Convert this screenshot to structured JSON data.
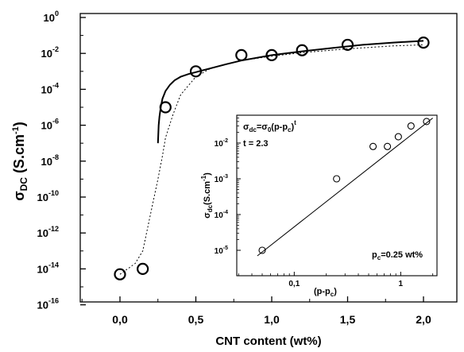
{
  "chart_data": [
    {
      "type": "scatter",
      "xlabel": "CNT content (wt%)",
      "ylabel": "σDC (S.cm-1)",
      "xlim": [
        -0.2,
        2.2
      ],
      "ylim_log10": [
        -16,
        0
      ],
      "y_scale": "log",
      "x_ticks": [
        "0,0",
        "0,5",
        "1,0",
        "1,5",
        "2,0"
      ],
      "x_tick_values": [
        0,
        0.5,
        1.0,
        1.5,
        2.0
      ],
      "y_tick_exponents": [
        0,
        -2,
        -4,
        -6,
        -8,
        -10,
        -12,
        -14,
        -16
      ],
      "grid": false,
      "series": [
        {
          "kind": "markers",
          "x": [
            0.0,
            0.15,
            0.3,
            0.5,
            0.8,
            1.0,
            1.2,
            1.5,
            2.0
          ],
          "y": [
            5e-15,
            1e-14,
            1e-05,
            0.001,
            0.008,
            0.008,
            0.015,
            0.03,
            0.04
          ]
        },
        {
          "kind": "solid-fit",
          "x": [
            0.25,
            0.255,
            0.26,
            0.27,
            0.28,
            0.3,
            0.33,
            0.36,
            0.4,
            0.45,
            0.5,
            0.6,
            0.7,
            0.8,
            1.0,
            1.2,
            1.4,
            1.6,
            1.8,
            2.0
          ],
          "y": [
            1e-07,
            1e-06,
            3e-06,
            1.2e-05,
            3e-05,
            8e-05,
            0.00018,
            0.00032,
            0.0005,
            0.0007,
            0.0009,
            0.0015,
            0.0025,
            0.004,
            0.008,
            0.013,
            0.02,
            0.03,
            0.04,
            0.05
          ]
        },
        {
          "kind": "dotted-fit",
          "x": [
            0.0,
            0.05,
            0.1,
            0.15,
            0.2,
            0.25,
            0.28,
            0.3,
            0.35,
            0.4,
            0.5,
            0.6,
            0.8,
            1.0,
            1.2,
            1.5,
            1.8,
            2.0
          ],
          "y": [
            5e-15,
            1e-14,
            2e-14,
            1e-13,
            1e-11,
            1e-09,
            2e-08,
            2e-07,
            4e-06,
            5e-05,
            0.0005,
            0.0015,
            0.004,
            0.007,
            0.011,
            0.018,
            0.026,
            0.03
          ]
        }
      ],
      "inset": {
        "type": "scatter",
        "xlabel": "(p-pc)",
        "ylabel": "σdc(S.cm-1)",
        "x_scale": "log",
        "y_scale": "log",
        "x_ticks": [
          "0,1",
          "1"
        ],
        "x_tick_values": [
          0.1,
          1
        ],
        "y_tick_exponents": [
          -2,
          -3,
          -4,
          -5
        ],
        "equation": "σdc=σ0(p-pc)t",
        "exponent_label": "t = 2.3",
        "threshold_label": "pc=0.25 wt%",
        "points": {
          "x": [
            0.05,
            0.25,
            0.55,
            0.75,
            0.95,
            1.25,
            1.75
          ],
          "y": [
            1e-05,
            0.001,
            0.008,
            0.008,
            0.015,
            0.03,
            0.04
          ]
        },
        "fit_line": {
          "x": [
            0.045,
            2.0
          ],
          "y": [
            7e-06,
            0.05
          ]
        }
      }
    }
  ]
}
